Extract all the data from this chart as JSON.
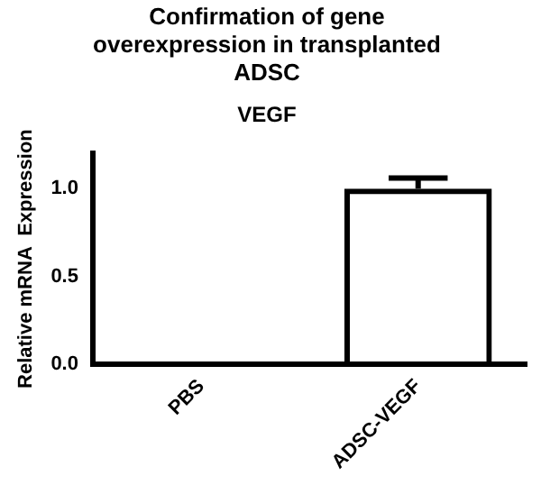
{
  "chart_data": {
    "type": "bar",
    "title": "Confirmation of gene overexpression in transplanted ADSC",
    "subtitle": "VEGF",
    "ylabel": "Relative mRNA  Expression",
    "categories": [
      "PBS",
      "ADSC-VEGF"
    ],
    "values": [
      0.01,
      1.0
    ],
    "errors": [
      null,
      0.06
    ],
    "color": "#000000",
    "ylim": [
      0,
      1.2
    ],
    "yticks": [
      {
        "value": 0,
        "label": "0.0"
      },
      {
        "value": 0.5,
        "label": "0.5"
      },
      {
        "value": 1,
        "label": "1.0"
      }
    ],
    "grid": false,
    "legend": false
  }
}
